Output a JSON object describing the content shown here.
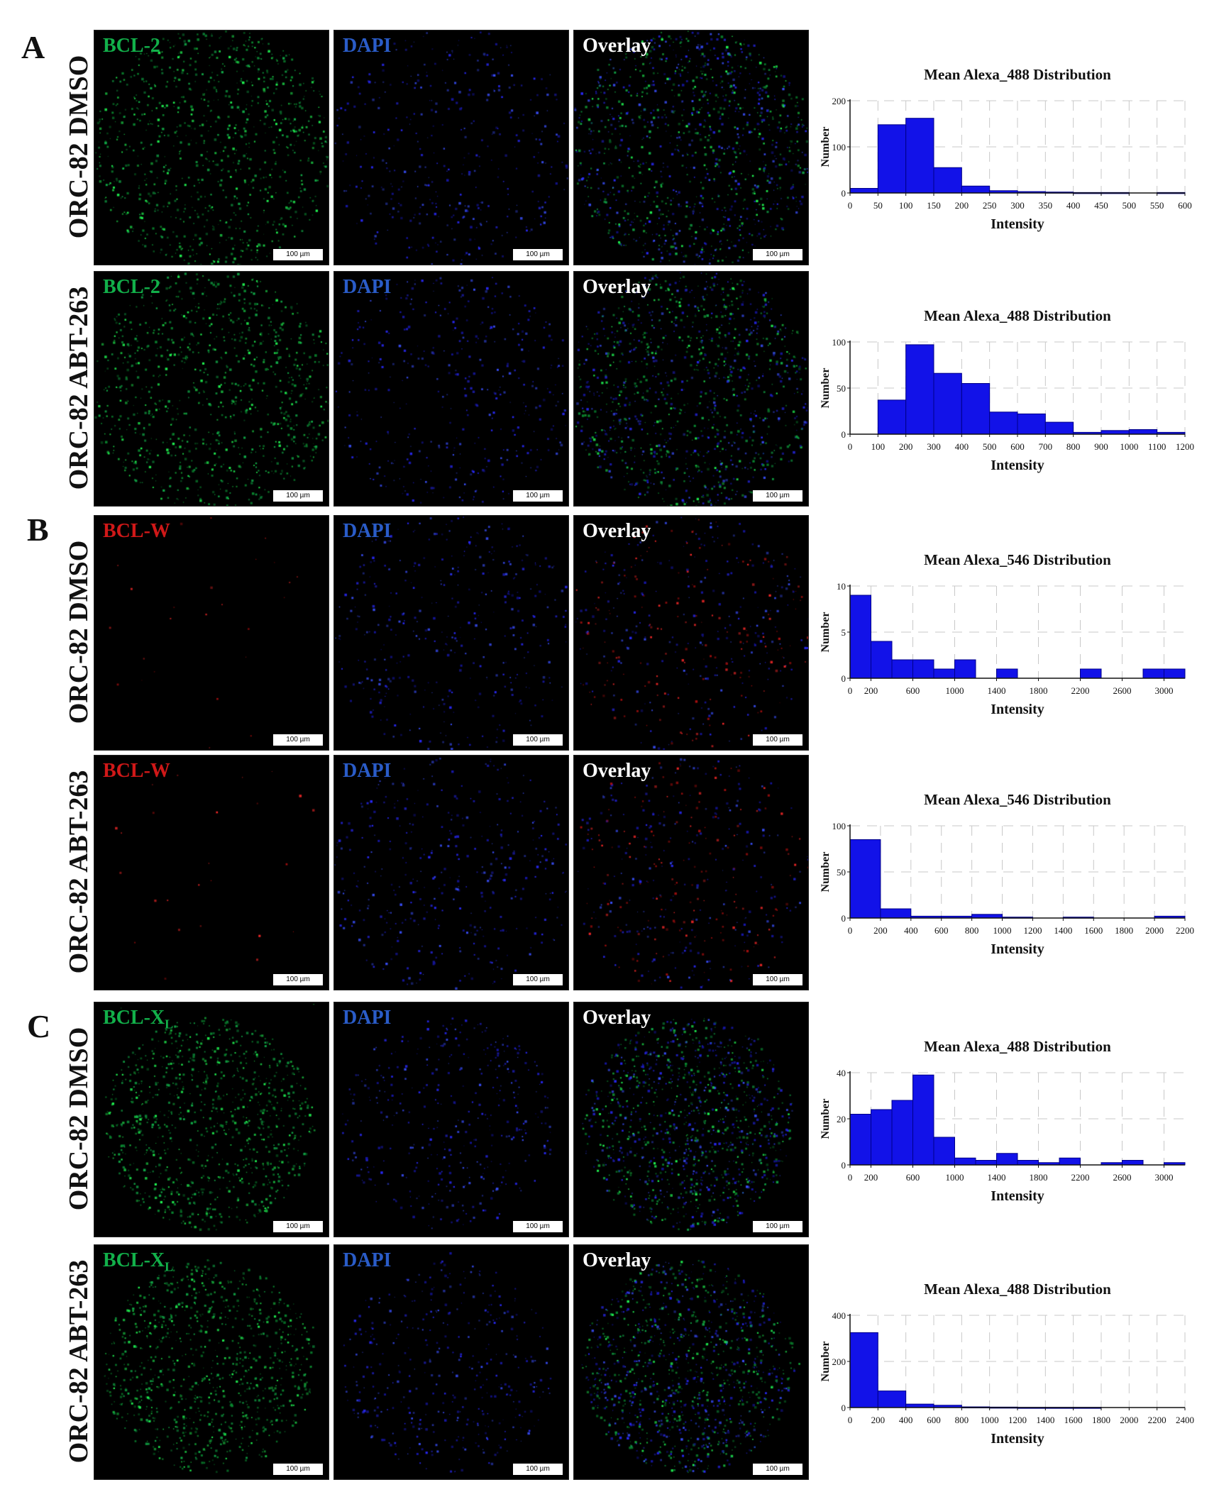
{
  "sections": [
    {
      "letter": "A",
      "rows": [
        {
          "row_label": "ORC-82 DMSO",
          "marker": "BCL-2",
          "marker_color": "#12b04a",
          "marker_sub": "",
          "dapi": "DAPI",
          "overlay": "Overlay",
          "scale": "100 µm",
          "chart_data": {
            "type": "bar",
            "title": "Mean Alexa_488 Distribution",
            "xlabel": "Intensity",
            "ylabel": "Number",
            "xlim": [
              0,
              600
            ],
            "ylim": [
              0,
              200
            ],
            "xticks": [
              0,
              50,
              100,
              150,
              200,
              250,
              300,
              350,
              400,
              450,
              500,
              550,
              600
            ],
            "yticks": [
              0,
              100,
              200
            ],
            "bin_width": 50,
            "bins": [
              [
                0,
                10
              ],
              [
                50,
                148
              ],
              [
                100,
                162
              ],
              [
                150,
                55
              ],
              [
                200,
                15
              ],
              [
                250,
                5
              ],
              [
                300,
                3
              ],
              [
                350,
                2
              ],
              [
                400,
                1
              ],
              [
                450,
                1
              ],
              [
                500,
                0
              ],
              [
                550,
                1
              ]
            ]
          }
        },
        {
          "row_label": "ORC-82 ABT-263",
          "marker": "BCL-2",
          "marker_color": "#12b04a",
          "marker_sub": "",
          "dapi": "DAPI",
          "overlay": "Overlay",
          "scale": "100 µm",
          "chart_data": {
            "type": "bar",
            "title": "Mean Alexa_488 Distribution",
            "xlabel": "Intensity",
            "ylabel": "Number",
            "xlim": [
              0,
              1200
            ],
            "ylim": [
              0,
              100
            ],
            "xticks": [
              0,
              100,
              200,
              300,
              400,
              500,
              600,
              700,
              800,
              900,
              1000,
              1100,
              1200
            ],
            "yticks": [
              0,
              50,
              100
            ],
            "bin_width": 100,
            "bins": [
              [
                0,
                0
              ],
              [
                100,
                37
              ],
              [
                200,
                97
              ],
              [
                300,
                66
              ],
              [
                400,
                55
              ],
              [
                500,
                24
              ],
              [
                600,
                22
              ],
              [
                700,
                13
              ],
              [
                800,
                2
              ],
              [
                900,
                4
              ],
              [
                1000,
                5
              ],
              [
                1100,
                2
              ]
            ]
          }
        }
      ]
    },
    {
      "letter": "B",
      "rows": [
        {
          "row_label": "ORC-82 DMSO",
          "marker": "BCL-W",
          "marker_color": "#d01818",
          "marker_sub": "",
          "dapi": "DAPI",
          "overlay": "Overlay",
          "scale": "100 µm",
          "chart_data": {
            "type": "bar",
            "title": "Mean Alexa_546 Distribution",
            "xlabel": "Intensity",
            "ylabel": "Number",
            "xlim": [
              0,
              3200
            ],
            "ylim": [
              0,
              10
            ],
            "xticks": [
              0,
              200,
              600,
              1000,
              1400,
              1800,
              2200,
              2600,
              3000
            ],
            "yticks": [
              0,
              5,
              10
            ],
            "bin_width": 200,
            "bins": [
              [
                0,
                9
              ],
              [
                200,
                4
              ],
              [
                400,
                2
              ],
              [
                600,
                2
              ],
              [
                800,
                1
              ],
              [
                1000,
                2
              ],
              [
                1400,
                1
              ],
              [
                2200,
                1
              ],
              [
                2800,
                1
              ],
              [
                3000,
                1
              ]
            ]
          }
        },
        {
          "row_label": "ORC-82 ABT-263",
          "marker": "BCL-W",
          "marker_color": "#d01818",
          "marker_sub": "",
          "dapi": "DAPI",
          "overlay": "Overlay",
          "scale": "100 µm",
          "chart_data": {
            "type": "bar",
            "title": "Mean Alexa_546 Distribution",
            "xlabel": "Intensity",
            "ylabel": "Number",
            "xlim": [
              0,
              2200
            ],
            "ylim": [
              0,
              100
            ],
            "xticks": [
              0,
              200,
              400,
              600,
              800,
              1000,
              1200,
              1400,
              1600,
              1800,
              2000,
              2200
            ],
            "yticks": [
              0,
              50,
              100
            ],
            "bin_width": 200,
            "bins": [
              [
                0,
                85
              ],
              [
                200,
                10
              ],
              [
                400,
                2
              ],
              [
                600,
                2
              ],
              [
                800,
                4
              ],
              [
                1000,
                1
              ],
              [
                1200,
                0
              ],
              [
                1400,
                1
              ],
              [
                1600,
                0
              ],
              [
                1800,
                0
              ],
              [
                2000,
                2
              ]
            ]
          }
        }
      ]
    },
    {
      "letter": "C",
      "rows": [
        {
          "row_label": "ORC-82 DMSO",
          "marker": "BCL-X",
          "marker_color": "#12b04a",
          "marker_sub": "L",
          "dapi": "DAPI",
          "overlay": "Overlay",
          "scale": "100 µm",
          "chart_data": {
            "type": "bar",
            "title": "Mean Alexa_488 Distribution",
            "xlabel": "Intensity",
            "ylabel": "Number",
            "xlim": [
              0,
              3200
            ],
            "ylim": [
              0,
              40
            ],
            "xticks": [
              0,
              200,
              600,
              1000,
              1400,
              1800,
              2200,
              2600,
              3000
            ],
            "yticks": [
              0,
              20,
              40
            ],
            "bin_width": 200,
            "bins": [
              [
                0,
                22
              ],
              [
                200,
                24
              ],
              [
                400,
                28
              ],
              [
                600,
                39
              ],
              [
                800,
                12
              ],
              [
                1000,
                3
              ],
              [
                1200,
                2
              ],
              [
                1400,
                5
              ],
              [
                1600,
                2
              ],
              [
                1800,
                1
              ],
              [
                2000,
                3
              ],
              [
                2400,
                1
              ],
              [
                2600,
                2
              ],
              [
                3000,
                1
              ]
            ]
          }
        },
        {
          "row_label": "ORC-82 ABT-263",
          "marker": "BCL-X",
          "marker_color": "#12b04a",
          "marker_sub": "L",
          "dapi": "DAPI",
          "overlay": "Overlay",
          "scale": "100 µm",
          "chart_data": {
            "type": "bar",
            "title": "Mean Alexa_488 Distribution",
            "xlabel": "Intensity",
            "ylabel": "Number",
            "xlim": [
              0,
              2400
            ],
            "ylim": [
              0,
              400
            ],
            "xticks": [
              0,
              200,
              400,
              600,
              800,
              1000,
              1200,
              1400,
              1600,
              1800,
              2000,
              2200,
              2400
            ],
            "yticks": [
              0,
              200,
              400
            ],
            "bin_width": 200,
            "bins": [
              [
                0,
                325
              ],
              [
                200,
                72
              ],
              [
                400,
                15
              ],
              [
                600,
                10
              ],
              [
                800,
                3
              ],
              [
                1000,
                2
              ],
              [
                1200,
                1
              ],
              [
                1400,
                1
              ],
              [
                1600,
                1
              ]
            ]
          }
        }
      ]
    }
  ],
  "colors": {
    "bar": "#1212e8",
    "dapi_label": "#2a5cc8",
    "overlay_label": "#ffffff",
    "grid": "#c8c8c8"
  }
}
